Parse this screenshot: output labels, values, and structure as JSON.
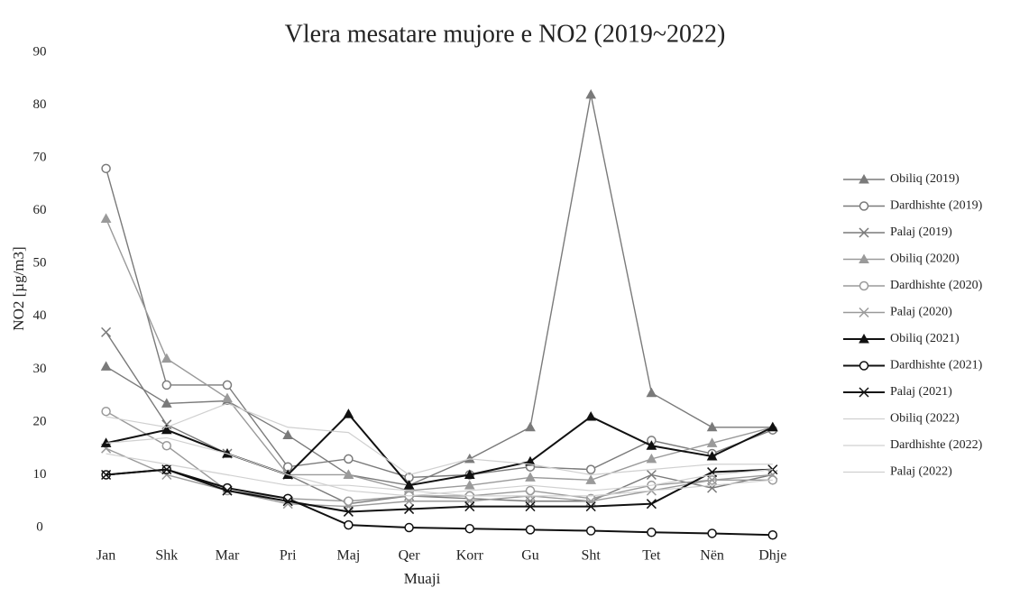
{
  "chart_data": {
    "type": "line",
    "title": "Vlera mesatare mujore e NO2 (2019~2022)",
    "x_label": "Muaji",
    "y_label": "NO2 [µg/m3]",
    "categories": [
      "Jan",
      "Shk",
      "Mar",
      "Pri",
      "Maj",
      "Qer",
      "Korr",
      "Gu",
      "Sht",
      "Tet",
      "Nën",
      "Dhje"
    ],
    "ylim": [
      -3,
      90
    ],
    "yticks": [
      0,
      10,
      20,
      30,
      40,
      50,
      60,
      70,
      80,
      90
    ],
    "grid": false,
    "legend": "right",
    "series": [
      {
        "name": "Obiliq (2019)",
        "color": "#7a7a7a",
        "marker": "triangle",
        "values": [
          30.5,
          23.5,
          24,
          17.5,
          10,
          8,
          13,
          19,
          82,
          25.5,
          19,
          19
        ]
      },
      {
        "name": "Dardhishte (2019)",
        "color": "#7a7a7a",
        "marker": "circle",
        "values": [
          68,
          27,
          27,
          11.5,
          13,
          9.5,
          10,
          11.5,
          11,
          16.5,
          14,
          18.5
        ]
      },
      {
        "name": "Palaj (2019)",
        "color": "#7a7a7a",
        "marker": "x",
        "values": [
          37,
          19.5,
          14,
          10,
          4.5,
          6,
          5.5,
          5,
          5,
          10,
          7.5,
          10
        ]
      },
      {
        "name": "Obiliq (2020)",
        "color": "#9a9a9a",
        "marker": "triangle",
        "values": [
          58.5,
          32,
          24.5,
          10,
          10,
          7,
          8,
          9.5,
          9,
          13,
          16,
          19
        ]
      },
      {
        "name": "Dardhishte (2020)",
        "color": "#9a9a9a",
        "marker": "circle",
        "values": [
          22,
          15.5,
          7,
          5.5,
          5,
          6,
          6,
          7,
          5.5,
          8,
          9,
          9
        ]
      },
      {
        "name": "Palaj (2020)",
        "color": "#9a9a9a",
        "marker": "x",
        "values": [
          15,
          10,
          7,
          4.5,
          4,
          5,
          5,
          6,
          5,
          7,
          9,
          10
        ]
      },
      {
        "name": "Obiliq (2021)",
        "color": "#111111",
        "marker": "triangle",
        "values": [
          16,
          18.5,
          14,
          10,
          21.5,
          8,
          10,
          12.5,
          21,
          15.5,
          13.5,
          19
        ]
      },
      {
        "name": "Dardhishte (2021)",
        "color": "#111111",
        "marker": "circle",
        "values": [
          10,
          11,
          7.5,
          5.5,
          0.5,
          0,
          -0.2,
          -0.4,
          -0.6,
          -0.9,
          -1.1,
          -1.4
        ]
      },
      {
        "name": "Palaj (2021)",
        "color": "#111111",
        "marker": "x",
        "values": [
          10,
          11,
          7,
          5,
          3,
          3.5,
          4,
          4,
          4,
          4.5,
          10.5,
          11
        ]
      },
      {
        "name": "Obiliq (2022)",
        "color": "#d0d0d0",
        "marker": "none",
        "values": [
          16,
          17,
          14,
          10,
          7,
          6,
          7,
          8,
          7,
          8,
          10,
          11
        ]
      },
      {
        "name": "Dardhishte (2022)",
        "color": "#d0d0d0",
        "marker": "none",
        "values": [
          14,
          12,
          10,
          8,
          8,
          7,
          6,
          6,
          6,
          7,
          8,
          9
        ]
      },
      {
        "name": "Palaj (2022)",
        "color": "#d0d0d0",
        "marker": "none",
        "values": [
          21,
          19,
          23.5,
          19,
          18,
          10,
          13,
          12,
          10,
          11,
          12,
          12
        ]
      }
    ]
  }
}
